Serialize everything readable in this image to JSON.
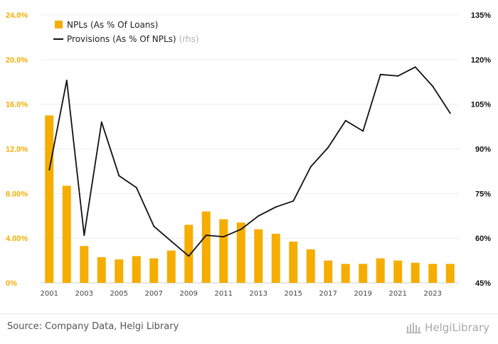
{
  "chart_data": {
    "type": "bar+line",
    "categories": [
      2001,
      2002,
      2003,
      2004,
      2005,
      2006,
      2007,
      2008,
      2009,
      2010,
      2011,
      2012,
      2013,
      2014,
      2015,
      2016,
      2017,
      2018,
      2019,
      2020,
      2021,
      2022,
      2023,
      2024
    ],
    "x_tick_labels": [
      "2001",
      "2003",
      "2005",
      "2007",
      "2009",
      "2011",
      "2013",
      "2015",
      "2017",
      "2019",
      "2021",
      "2023"
    ],
    "series": [
      {
        "name": "NPLs (As % Of Loans)",
        "type": "bar",
        "axis": "left",
        "color": "#f5ad00",
        "values": [
          15.0,
          8.7,
          3.3,
          2.3,
          2.1,
          2.4,
          2.2,
          2.9,
          5.2,
          6.4,
          5.7,
          5.4,
          4.8,
          4.4,
          3.7,
          3.0,
          2.0,
          1.7,
          1.7,
          2.2,
          2.0,
          1.8,
          1.7,
          1.7
        ]
      },
      {
        "name": "Provisions (As % Of NPLs)",
        "name_suffix": "(rhs)",
        "type": "line",
        "axis": "right",
        "color": "#111111",
        "values": [
          83,
          113,
          61,
          99,
          81,
          77,
          64,
          59,
          54,
          61,
          60.5,
          63,
          67.5,
          70.5,
          72.5,
          84,
          90.5,
          99.5,
          96,
          115,
          114.5,
          117.5,
          111,
          102
        ]
      }
    ],
    "y_left": {
      "ylim": [
        0,
        24
      ],
      "ticks": [
        "0%",
        "4.00%",
        "8.00%",
        "12.0%",
        "16.0%",
        "20.0%",
        "24.0%"
      ],
      "tick_values": [
        0,
        4,
        8,
        12,
        16,
        20,
        24
      ]
    },
    "y_right": {
      "ylim": [
        45,
        135
      ],
      "ticks": [
        "45%",
        "60%",
        "75%",
        "90%",
        "105%",
        "120%",
        "135%"
      ],
      "tick_values": [
        45,
        60,
        75,
        90,
        105,
        120,
        135
      ]
    },
    "grid": true,
    "legend": "top-left"
  },
  "footer": {
    "source": "Source: Company Data, Helgi Library",
    "brand": "HelgiLibrary"
  }
}
